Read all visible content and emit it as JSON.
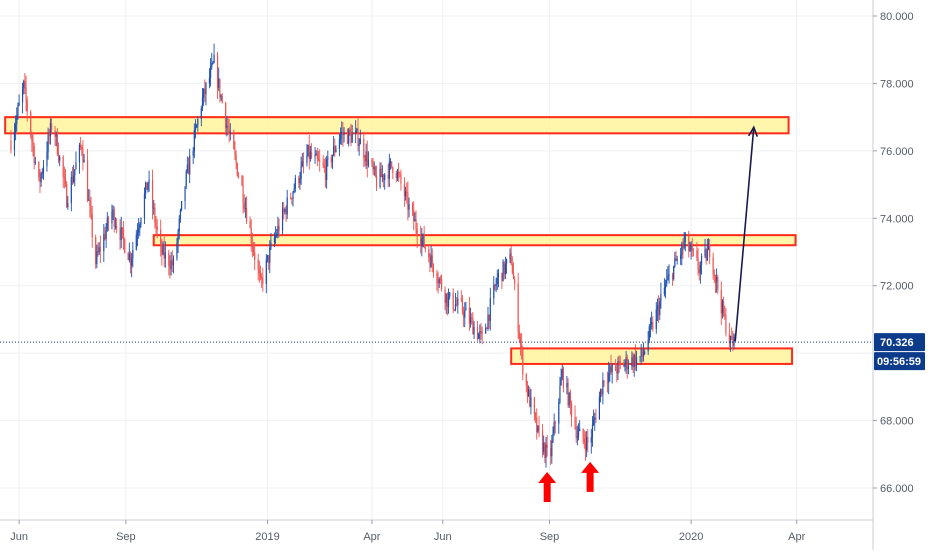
{
  "chart_data": {
    "type": "candlestick",
    "x_ticks": [
      "Jun",
      "Sep",
      "2019",
      "Apr",
      "Jun",
      "Sep",
      "2020",
      "Apr"
    ],
    "y_ticks": [
      "66.000",
      "68.000",
      "72.000",
      "74.000",
      "76.000",
      "78.000",
      "80.000"
    ],
    "ylim": [
      65.2,
      80.4
    ],
    "grid": true,
    "current_price": {
      "value": 70.326,
      "label": "70.326",
      "countdown": "09:56:59"
    },
    "colors": {
      "up": "#1e4fae",
      "down": "#ef5350",
      "zone_fill": "#fff59d",
      "zone_border": "#ff2a1a",
      "arrow": "#1a1a4e",
      "marker": "#ff0000",
      "price_tag": "#0d3b8c"
    },
    "series": [
      {
        "path_points": [
          [
            "2018-05-25",
            76.3
          ],
          [
            "2018-06-05",
            77.9
          ],
          [
            "2018-06-18",
            75.0
          ],
          [
            "2018-06-30",
            76.9
          ],
          [
            "2018-07-12",
            74.6
          ],
          [
            "2018-07-25",
            76.2
          ],
          [
            "2018-08-06",
            72.7
          ],
          [
            "2018-08-20",
            74.2
          ],
          [
            "2018-09-05",
            72.8
          ],
          [
            "2018-09-20",
            75.1
          ],
          [
            "2018-10-01",
            73.0
          ],
          [
            "2018-10-12",
            72.6
          ],
          [
            "2018-10-22",
            75.0
          ],
          [
            "2018-11-05",
            77.4
          ],
          [
            "2018-11-16",
            78.6
          ],
          [
            "2018-11-28",
            76.6
          ],
          [
            "2018-12-10",
            74.9
          ],
          [
            "2018-12-26",
            72.0
          ],
          [
            "2019-01-05",
            73.2
          ],
          [
            "2019-01-20",
            74.6
          ],
          [
            "2019-02-05",
            75.9
          ],
          [
            "2019-02-20",
            75.4
          ],
          [
            "2019-03-05",
            76.5
          ],
          [
            "2019-03-20",
            76.4
          ],
          [
            "2019-04-05",
            75.1
          ],
          [
            "2019-04-20",
            75.6
          ],
          [
            "2019-05-05",
            74.1
          ],
          [
            "2019-05-20",
            72.9
          ],
          [
            "2019-06-05",
            71.6
          ],
          [
            "2019-06-18",
            71.3
          ],
          [
            "2019-07-05",
            70.4
          ],
          [
            "2019-07-18",
            72.2
          ],
          [
            "2019-07-30",
            72.8
          ],
          [
            "2019-08-10",
            69.3
          ],
          [
            "2019-08-22",
            67.6
          ],
          [
            "2019-09-01",
            66.8
          ],
          [
            "2019-09-12",
            69.4
          ],
          [
            "2019-09-25",
            67.6
          ],
          [
            "2019-10-05",
            67.3
          ],
          [
            "2019-10-18",
            69.3
          ],
          [
            "2019-11-05",
            69.7
          ],
          [
            "2019-11-20",
            69.9
          ],
          [
            "2019-12-10",
            72.0
          ],
          [
            "2019-12-27",
            73.3
          ],
          [
            "2020-01-08",
            72.5
          ],
          [
            "2020-01-17",
            73.1
          ],
          [
            "2020-01-29",
            71.1
          ],
          [
            "2020-02-04",
            70.3
          ],
          [
            "2020-02-09",
            70.33
          ]
        ]
      }
    ],
    "annotations": {
      "zones": [
        {
          "x_start": "2018-05-20",
          "x_end": "2020-03-25",
          "y_low": 76.52,
          "y_high": 77.0
        },
        {
          "x_start": "2018-09-25",
          "x_end": "2020-03-31",
          "y_low": 73.2,
          "y_high": 73.5
        },
        {
          "x_start": "2019-07-30",
          "x_end": "2020-03-28",
          "y_low": 69.68,
          "y_high": 70.14
        }
      ],
      "projection_arrow": {
        "from": [
          "2020-02-08",
          70.35
        ],
        "to": [
          "2020-02-24",
          76.7
        ]
      },
      "markers": [
        {
          "x": "2019-08-30",
          "y": 66.0,
          "shape": "up-arrow"
        },
        {
          "x": "2019-10-06",
          "y": 66.3,
          "shape": "up-arrow"
        }
      ]
    }
  }
}
